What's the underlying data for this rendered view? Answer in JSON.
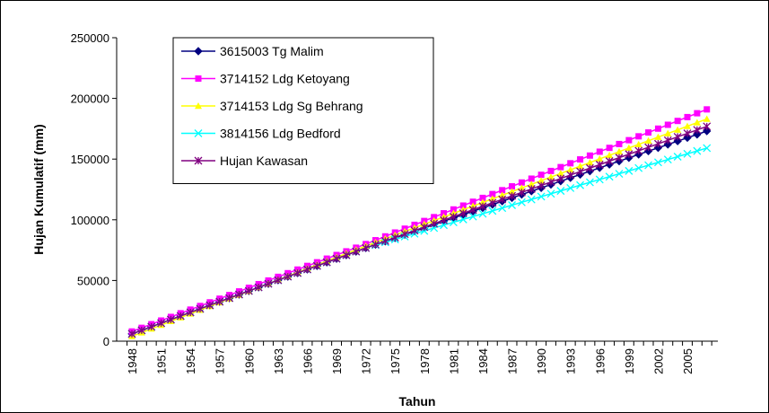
{
  "chart_data": {
    "type": "line",
    "x_label": "Tahun",
    "y_label": "Hujan Kumulatif (mm)",
    "categories": [
      "1948",
      null,
      null,
      "1951",
      null,
      null,
      "1954",
      null,
      null,
      "1957",
      null,
      null,
      "1960",
      null,
      null,
      "1963",
      null,
      null,
      "1966",
      null,
      null,
      "1969",
      null,
      null,
      "1972",
      null,
      null,
      "1975",
      null,
      null,
      "1978",
      null,
      null,
      "1981",
      null,
      null,
      "1984",
      null,
      null,
      "1987",
      null,
      null,
      "1990",
      null,
      null,
      "1993",
      null,
      null,
      "1996",
      null,
      null,
      "1999",
      null,
      null,
      "2002",
      null,
      null,
      "2005",
      null,
      null
    ],
    "ylim": [
      0,
      250000
    ],
    "yticks": [
      0,
      50000,
      100000,
      150000,
      200000,
      250000
    ],
    "legend": "top-left",
    "series": [
      {
        "name": "3615003 Tg Malim",
        "color": "#000080",
        "marker": "diamond",
        "values": [
          6000,
          8950,
          11900,
          14850,
          17800,
          20750,
          23700,
          26650,
          29600,
          32550,
          35500,
          38450,
          41400,
          44350,
          47300,
          50250,
          53200,
          56150,
          59100,
          62050,
          65000,
          67950,
          70900,
          73850,
          76800,
          79550,
          82300,
          85050,
          87800,
          90550,
          93300,
          96050,
          98800,
          101550,
          104300,
          107050,
          109800,
          112550,
          115300,
          118050,
          120800,
          123550,
          126300,
          129050,
          131800,
          134550,
          137300,
          140050,
          142800,
          145550,
          148300,
          151050,
          153800,
          156550,
          159300,
          162050,
          164800,
          167550,
          170300,
          173050
        ]
      },
      {
        "name": "3714152 Ldg Ketoyang",
        "color": "#ff00ff",
        "marker": "square",
        "values": [
          8000,
          11000,
          14000,
          17000,
          20000,
          23000,
          26000,
          29000,
          32000,
          35000,
          38000,
          41000,
          44000,
          47000,
          50000,
          53000,
          56000,
          59000,
          62000,
          65000,
          68000,
          71000,
          74000,
          77000,
          80000,
          83170,
          86340,
          89510,
          92680,
          95850,
          99020,
          102190,
          105360,
          108530,
          111700,
          114870,
          118040,
          121210,
          124380,
          127550,
          130720,
          133890,
          137060,
          140230,
          143400,
          146570,
          149740,
          152910,
          156080,
          159250,
          162420,
          165590,
          168760,
          171930,
          175100,
          178270,
          181440,
          184610,
          187780,
          190950
        ]
      },
      {
        "name": "3714153 Ldg Sg Behrang",
        "color": "#ffff00",
        "marker": "triangle",
        "values": [
          4000,
          7100,
          10200,
          13300,
          16400,
          19500,
          22600,
          25700,
          28800,
          31900,
          35000,
          38100,
          41200,
          44300,
          47400,
          50500,
          53600,
          56700,
          59800,
          62900,
          66000,
          69100,
          72200,
          75300,
          78400,
          81390,
          84380,
          87370,
          90360,
          93350,
          96340,
          99330,
          102320,
          105310,
          108300,
          111290,
          114280,
          117270,
          120260,
          123250,
          126240,
          129230,
          132220,
          135210,
          138200,
          141190,
          144180,
          147170,
          150160,
          153150,
          156140,
          159130,
          162120,
          165110,
          168100,
          171090,
          174080,
          177070,
          180060,
          183050
        ]
      },
      {
        "name": "3814156 Ldg Bedford",
        "color": "#00ffff",
        "marker": "x",
        "values": [
          6000,
          8950,
          11900,
          14850,
          17800,
          20750,
          23700,
          26650,
          29600,
          32550,
          35500,
          38450,
          41400,
          44350,
          47300,
          50250,
          53200,
          56150,
          59100,
          62050,
          65000,
          67950,
          70900,
          73850,
          76800,
          79150,
          81500,
          83850,
          86200,
          88550,
          90900,
          93250,
          95600,
          97950,
          100300,
          102650,
          105000,
          107350,
          109700,
          112050,
          114400,
          116750,
          119100,
          121450,
          123800,
          126150,
          128500,
          130850,
          133200,
          135550,
          137900,
          140250,
          142600,
          144950,
          147300,
          149650,
          152000,
          154350,
          156700,
          159050
        ]
      },
      {
        "name": "Hujan Kawasan",
        "color": "#800080",
        "marker": "star",
        "values": [
          6000,
          8950,
          11900,
          14850,
          17800,
          20750,
          23700,
          26650,
          29600,
          32550,
          35500,
          38450,
          41400,
          44350,
          47300,
          50250,
          53200,
          56150,
          59100,
          62050,
          65000,
          67950,
          70900,
          73850,
          76800,
          79660,
          82520,
          85380,
          88240,
          91100,
          93960,
          96820,
          99680,
          102540,
          105400,
          108260,
          111120,
          113980,
          116840,
          119700,
          122560,
          125420,
          128280,
          131140,
          134000,
          136860,
          139720,
          142580,
          145440,
          148300,
          151160,
          154020,
          156880,
          159740,
          162600,
          165460,
          168320,
          171180,
          174040,
          176900
        ]
      }
    ]
  }
}
